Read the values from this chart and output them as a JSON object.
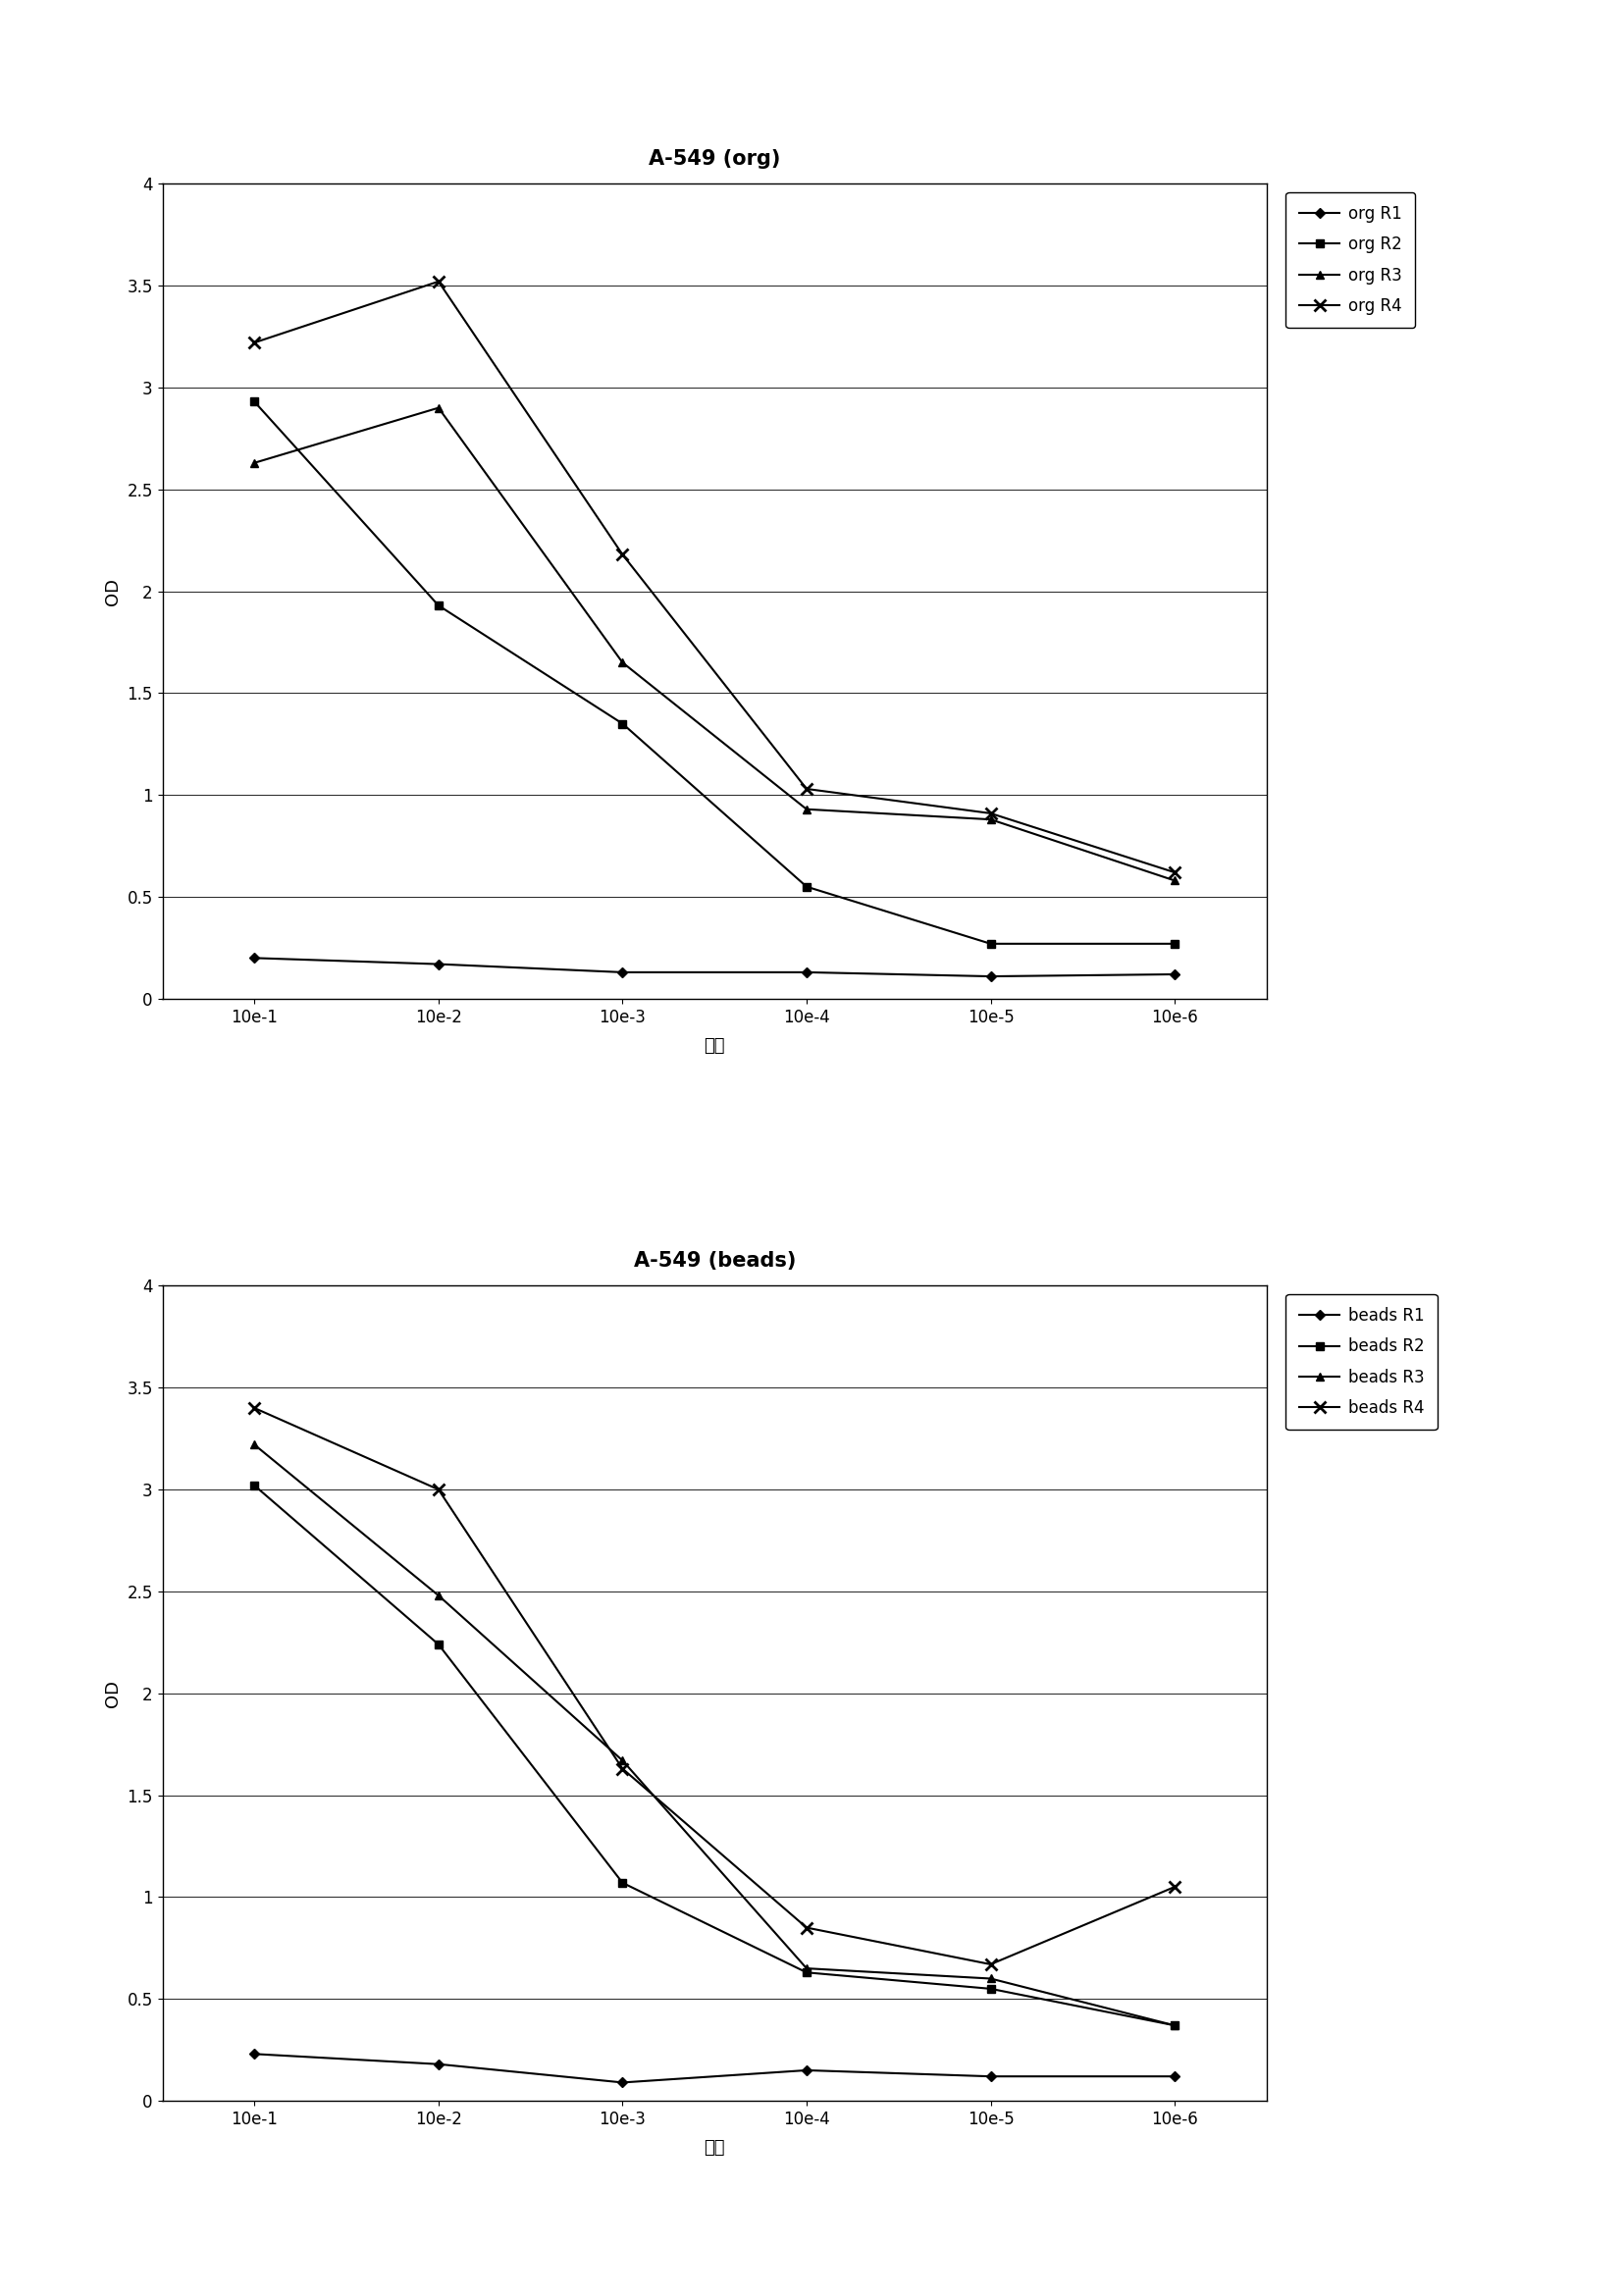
{
  "chart1": {
    "title": "A-549 (org)",
    "xlabel": "样品",
    "ylabel": "OD",
    "x_labels": [
      "10e-1",
      "10e-2",
      "10e-3",
      "10e-4",
      "10e-5",
      "10e-6"
    ],
    "series": [
      {
        "label": "org R1",
        "marker": "D",
        "values": [
          0.2,
          0.17,
          0.13,
          0.13,
          0.11,
          0.12
        ]
      },
      {
        "label": "org R2",
        "marker": "s",
        "values": [
          2.93,
          1.93,
          1.35,
          0.55,
          0.27,
          0.27
        ]
      },
      {
        "label": "org R3",
        "marker": "^",
        "values": [
          2.63,
          2.9,
          1.65,
          0.93,
          0.88,
          0.58
        ]
      },
      {
        "label": "org R4",
        "marker": "x",
        "values": [
          3.22,
          3.52,
          2.18,
          1.03,
          0.91,
          0.62
        ]
      }
    ],
    "ylim": [
      0,
      4
    ],
    "yticks": [
      0,
      0.5,
      1.0,
      1.5,
      2.0,
      2.5,
      3.0,
      3.5,
      4.0
    ]
  },
  "chart2": {
    "title": "A-549 (beads)",
    "xlabel": "稀释",
    "ylabel": "OD",
    "x_labels": [
      "10e-1",
      "10e-2",
      "10e-3",
      "10e-4",
      "10e-5",
      "10e-6"
    ],
    "series": [
      {
        "label": "beads R1",
        "marker": "D",
        "values": [
          0.23,
          0.18,
          0.09,
          0.15,
          0.12,
          0.12
        ]
      },
      {
        "label": "beads R2",
        "marker": "s",
        "values": [
          3.02,
          2.24,
          1.07,
          0.63,
          0.55,
          0.37
        ]
      },
      {
        "label": "beads R3",
        "marker": "^",
        "values": [
          3.22,
          2.48,
          1.67,
          0.65,
          0.6,
          0.37
        ]
      },
      {
        "label": "beads R4",
        "marker": "x",
        "values": [
          3.4,
          3.0,
          1.63,
          0.85,
          0.67,
          1.05
        ]
      }
    ],
    "ylim": [
      0,
      4
    ],
    "yticks": [
      0,
      0.5,
      1.0,
      1.5,
      2.0,
      2.5,
      3.0,
      3.5,
      4.0
    ]
  },
  "line_color": "#000000",
  "marker_size": 6,
  "marker_fill": "#000000",
  "line_width": 1.5,
  "title_fontsize": 15,
  "label_fontsize": 13,
  "tick_fontsize": 12,
  "legend_fontsize": 12,
  "background_color": "#ffffff"
}
